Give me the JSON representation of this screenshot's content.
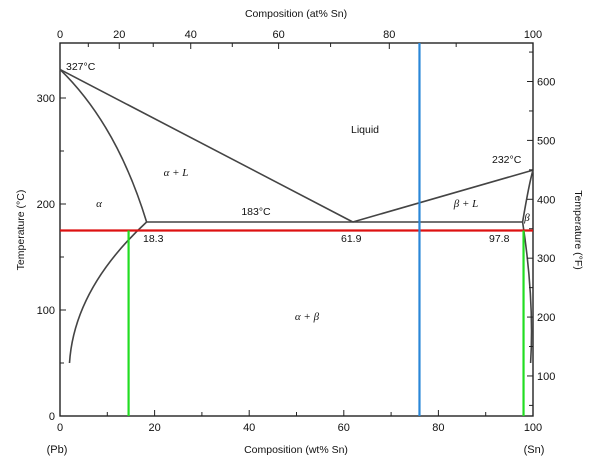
{
  "chart_data": {
    "type": "phase-diagram",
    "top_axis": {
      "title": "Composition (at% Sn)",
      "ticks": [
        "0",
        "20",
        "40",
        "60",
        "80",
        "100"
      ]
    },
    "bottom_axis": {
      "title": "Composition (wt% Sn)",
      "ticks": [
        "0",
        "20",
        "40",
        "60",
        "80",
        "100"
      ],
      "left_end": "(Pb)",
      "right_end": "(Sn)"
    },
    "left_axis": {
      "title": "Temperature (°C)",
      "ticks": [
        "0",
        "100",
        "200",
        "300"
      ]
    },
    "right_axis": {
      "title": "Temperature (°F)",
      "ticks": [
        "100",
        "200",
        "300",
        "400",
        "500",
        "600"
      ]
    },
    "regions": {
      "liquid": "Liquid",
      "alpha_plus_l": "α + L",
      "alpha": "α",
      "beta_plus_l": "β + L",
      "beta": "β",
      "alpha_plus_beta": "α + β"
    },
    "points": {
      "pb_melting": "327°C",
      "sn_melting": "232°C",
      "eutectic_temp": "183°C",
      "alpha_max_solubility": "18.3",
      "eutectic_composition": "61.9",
      "beta_max_solubility": "97.8"
    },
    "invariant_points": {
      "pb_melting_point": {
        "wt_sn": 0,
        "temp_c": 327
      },
      "sn_melting_point": {
        "wt_sn": 100,
        "temp_c": 232
      },
      "eutectic": {
        "temp_c": 183,
        "alpha_wt_sn": 18.3,
        "liquid_wt_sn": 61.9,
        "beta_wt_sn": 97.8
      }
    },
    "overlay_lines": {
      "red_horizontal_temp_c": 175,
      "blue_vertical_wt_sn": 76,
      "green_left_wt_sn": 14.5,
      "green_right_wt_sn": 98
    },
    "colors": {
      "red_line": "#dd1111",
      "blue_line": "#2a87d8",
      "green_line": "#22dd22",
      "phase_lines": "#444444"
    }
  }
}
